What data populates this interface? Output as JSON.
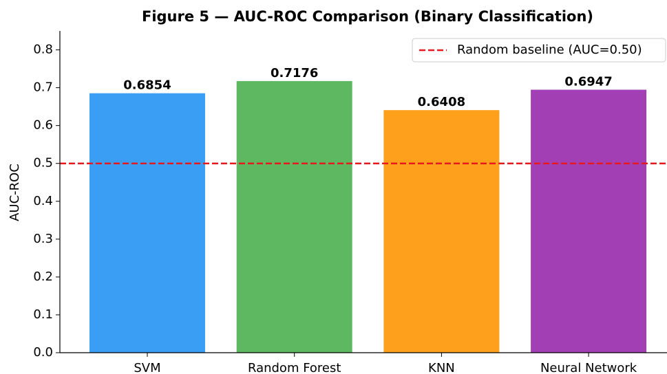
{
  "chart_data": {
    "type": "bar",
    "title": "Figure 5 — AUC-ROC Comparison (Binary Classification)",
    "ylabel": "AUC-ROC",
    "categories": [
      "SVM",
      "Random Forest",
      "KNN",
      "Neural Network"
    ],
    "values": [
      0.6854,
      0.7176,
      0.6408,
      0.6947
    ],
    "colors": [
      "#3a9ef5",
      "#5eb862",
      "#ffa01c",
      "#a33fb5"
    ],
    "ylim": [
      0,
      0.85
    ],
    "yticks": [
      {
        "value": 0,
        "label": "0.0"
      },
      0.1,
      0.2,
      0.3,
      0.4,
      0.5,
      0.6,
      0.7,
      0.8
    ],
    "baseline": {
      "value": 0.5,
      "name": "Random baseline (AUC=0.50)",
      "color": "#e8191c"
    },
    "legend": "upper right"
  }
}
